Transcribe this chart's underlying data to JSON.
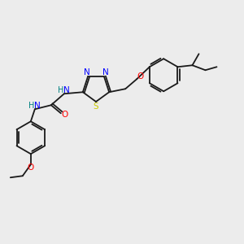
{
  "background_color": "#ececec",
  "atom_colors": {
    "N": "#0000ff",
    "O": "#ff0000",
    "S": "#cccc00",
    "C": "#1a1a1a",
    "H": "#008080"
  },
  "figsize": [
    3.0,
    3.0
  ],
  "dpi": 100,
  "lw": 1.3
}
